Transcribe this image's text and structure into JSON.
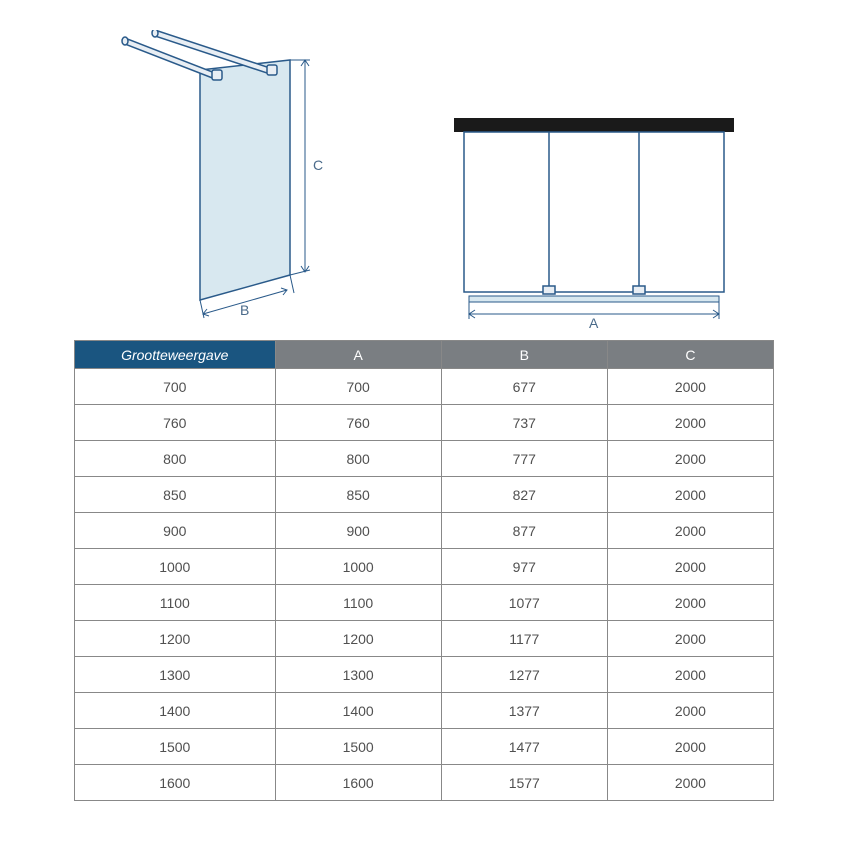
{
  "diagrams": {
    "left": {
      "label_b": "B",
      "label_c": "C"
    },
    "right": {
      "label_a": "A"
    }
  },
  "colors": {
    "line": "#2a5a8a",
    "glass_fill": "#d8e8f0",
    "glass_fill_dark": "#b8d4e4",
    "header_first_bg": "#1a5580",
    "header_other_bg": "#7a7e82",
    "header_text": "#ffffff",
    "border": "#888888",
    "text": "#505050",
    "black": "#1a1a1a"
  },
  "table": {
    "headers": [
      "Grootteweergave",
      "A",
      "B",
      "C"
    ],
    "rows": [
      [
        "700",
        "700",
        "677",
        "2000"
      ],
      [
        "760",
        "760",
        "737",
        "2000"
      ],
      [
        "800",
        "800",
        "777",
        "2000"
      ],
      [
        "850",
        "850",
        "827",
        "2000"
      ],
      [
        "900",
        "900",
        "877",
        "2000"
      ],
      [
        "1000",
        "1000",
        "977",
        "2000"
      ],
      [
        "1100",
        "1100",
        "1077",
        "2000"
      ],
      [
        "1200",
        "1200",
        "1177",
        "2000"
      ],
      [
        "1300",
        "1300",
        "1277",
        "2000"
      ],
      [
        "1400",
        "1400",
        "1377",
        "2000"
      ],
      [
        "1500",
        "1500",
        "1477",
        "2000"
      ],
      [
        "1600",
        "1600",
        "1577",
        "2000"
      ]
    ]
  }
}
